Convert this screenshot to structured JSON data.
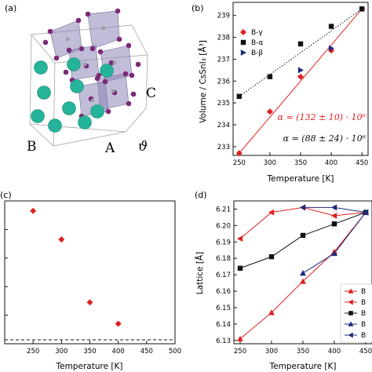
{
  "panels": {
    "a": {
      "label": "(a)",
      "axis_labels": {
        "B": "B",
        "A": "A",
        "C": "C",
        "theta": "ϑ"
      }
    }
  },
  "chart_data": [
    {
      "id": "b",
      "type": "scatter",
      "label": "(b)",
      "title": "",
      "xlabel": "Temperature [K]",
      "ylabel": "Volume / CsSnI₃ [Å³]",
      "xlim": [
        240,
        460
      ],
      "ylim": [
        232.6,
        239.6
      ],
      "xticks": [
        250,
        300,
        350,
        400,
        450
      ],
      "yticks": [
        233,
        234,
        235,
        236,
        237,
        238,
        239
      ],
      "grid": false,
      "legend": "top-right",
      "series": [
        {
          "name": "B-γ",
          "marker": "diamond",
          "color": "#e02020",
          "x": [
            250,
            300,
            350,
            400,
            450
          ],
          "y": [
            232.7,
            234.6,
            236.2,
            237.4,
            239.3
          ]
        },
        {
          "name": "B-α",
          "marker": "square",
          "color": "#111111",
          "x": [
            250,
            300,
            350,
            400,
            450
          ],
          "y": [
            235.3,
            236.2,
            237.7,
            238.5,
            239.3
          ]
        },
        {
          "name": "B-β",
          "marker": "triangle-right",
          "color": "#1f2a7a",
          "x": [
            350,
            400
          ],
          "y": [
            236.5,
            237.5
          ]
        }
      ],
      "fits": [
        {
          "color": "#e02020",
          "style": "solid",
          "x": [
            250,
            450
          ],
          "y": [
            232.7,
            239.3
          ]
        },
        {
          "color": "#111111",
          "style": "dotted",
          "x": [
            250,
            450
          ],
          "y": [
            235.3,
            239.3
          ]
        }
      ],
      "annotations": [
        {
          "text": "α = (132 ± 10) · 10⁶",
          "color": "#e02020"
        },
        {
          "text": "α = (88 ± 24) · 10⁶",
          "color": "#111111"
        }
      ]
    },
    {
      "id": "c",
      "type": "scatter",
      "label": "(c)",
      "title": "",
      "xlabel": "Temperature [K]",
      "ylabel": "",
      "xlim": [
        200,
        500
      ],
      "ylim": [
        0,
        1
      ],
      "xticks": [
        250,
        300,
        350,
        400,
        450,
        500
      ],
      "grid": false,
      "series": [
        {
          "marker": "diamond",
          "color": "#e02020",
          "x": [
            250,
            300,
            350,
            400
          ],
          "y": [
            0.93,
            0.73,
            0.29,
            0.14
          ]
        }
      ],
      "reference_lines": [
        {
          "y": 0.0,
          "style": "dashed",
          "color": "#111111"
        }
      ]
    },
    {
      "id": "d",
      "type": "line",
      "label": "(d)",
      "title": "",
      "xlabel": "Temperature [K]",
      "ylabel": "Lattice [Å]",
      "xlim": [
        240,
        460
      ],
      "ylim": [
        6.128,
        6.215
      ],
      "xticks": [
        250,
        300,
        350,
        400,
        450
      ],
      "yticks": [
        6.13,
        6.14,
        6.15,
        6.16,
        6.17,
        6.18,
        6.19,
        6.2,
        6.21
      ],
      "grid": false,
      "legend": "bottom-right",
      "series": [
        {
          "name": "B",
          "marker": "triangle-up",
          "color": "#e02020",
          "x": [
            250,
            300,
            350,
            400,
            450
          ],
          "y": [
            6.131,
            6.147,
            6.166,
            6.184,
            6.208
          ]
        },
        {
          "name": "B",
          "marker": "triangle-left",
          "color": "#e02020",
          "x": [
            250,
            300,
            350,
            400,
            450
          ],
          "y": [
            6.192,
            6.208,
            6.211,
            6.206,
            6.208
          ]
        },
        {
          "name": "B",
          "marker": "square",
          "color": "#111111",
          "x": [
            250,
            300,
            350,
            400,
            450
          ],
          "y": [
            6.174,
            6.181,
            6.194,
            6.201,
            6.208
          ]
        },
        {
          "name": "B",
          "marker": "triangle-up",
          "color": "#1f2a7a",
          "x": [
            350,
            400,
            450
          ],
          "y": [
            6.171,
            6.183,
            6.208
          ]
        },
        {
          "name": "B",
          "marker": "triangle-left",
          "color": "#1f2a7a",
          "x": [
            350,
            400,
            450
          ],
          "y": [
            6.211,
            6.211,
            6.208
          ]
        }
      ]
    }
  ]
}
